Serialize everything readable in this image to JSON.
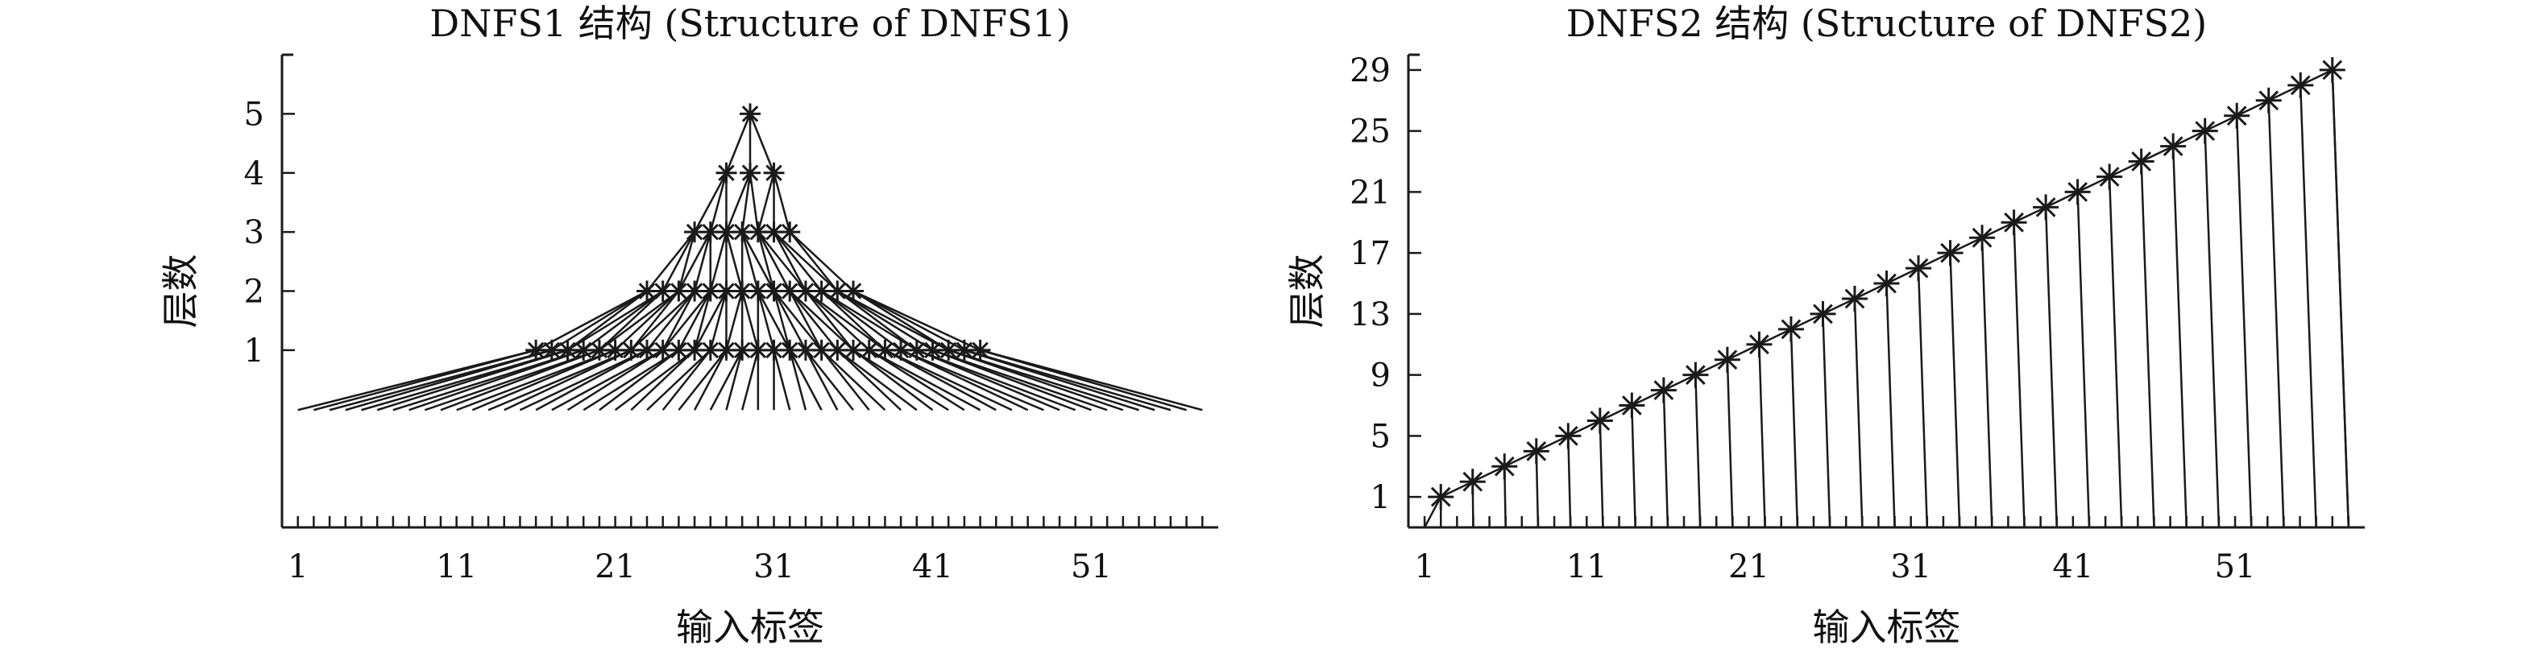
{
  "colors": {
    "ink": "#1a1a1a",
    "background": "#ffffff"
  },
  "chart_data": [
    {
      "type": "network-structure",
      "title": "DNFS1 结构 (Structure of DNFS1)",
      "xlabel": "输入标签",
      "ylabel": "层数",
      "x_ticks": [
        "1",
        "11",
        "21",
        "31",
        "41",
        "51"
      ],
      "y_ticks": [
        "1",
        "2",
        "3",
        "4",
        "5"
      ],
      "xlim": [
        0,
        59
      ],
      "ylim": [
        -2,
        6
      ],
      "input_labels": {
        "first": 1,
        "last": 58
      },
      "marker": "asterisk",
      "layers": [
        {
          "level": 1,
          "x_start": 16,
          "x_end": 44,
          "count": 29
        },
        {
          "level": 2,
          "x_start": 23,
          "x_end": 36,
          "count": 14
        },
        {
          "level": 3,
          "x_start": 26,
          "x_end": 32,
          "count": 7
        },
        {
          "level": 4,
          "x_start": 28,
          "x_end": 31,
          "count": 3
        },
        {
          "level": 5,
          "x_start": 29.5,
          "x_end": 29.5,
          "count": 1
        }
      ]
    },
    {
      "type": "network-structure",
      "title": "DNFS2 结构 (Structure of DNFS2)",
      "xlabel": "输入标签",
      "ylabel": "层数",
      "x_ticks": [
        "1",
        "11",
        "21",
        "31",
        "41",
        "51"
      ],
      "y_ticks": [
        "1",
        "5",
        "9",
        "13",
        "17",
        "21",
        "25",
        "29"
      ],
      "xlim": [
        0,
        59
      ],
      "ylim": [
        -1,
        30
      ],
      "input_labels": {
        "first": 1,
        "last": 58
      },
      "marker": "asterisk",
      "chain": {
        "level_start": 1,
        "level_end": 29,
        "x_start": 2,
        "x_end": 57
      }
    }
  ]
}
